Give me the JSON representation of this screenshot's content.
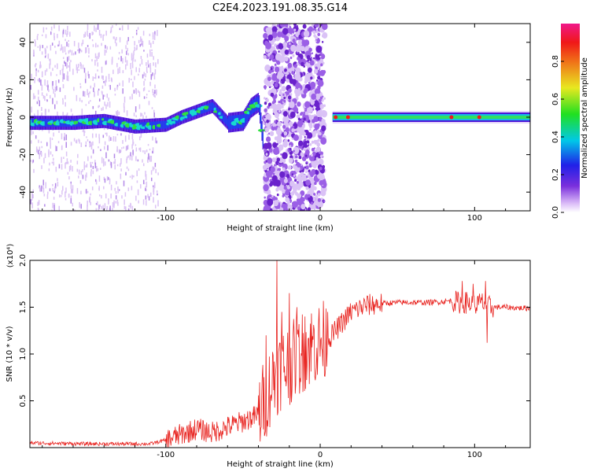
{
  "title": "C2E4.2023.191.08.35.G14",
  "colors": {
    "snr_line": "#e8231f",
    "frame": "#000000"
  },
  "chart_data": [
    {
      "type": "heatmap",
      "xlabel": "Height of straight line (km)",
      "ylabel": "Frequency (Hz)",
      "xlim": [
        -188,
        136
      ],
      "ylim": [
        -50,
        50
      ],
      "xticks": [
        -100,
        0,
        100
      ],
      "yticks": [
        -40,
        -20,
        0,
        20,
        40
      ],
      "ytick_labels": [
        "-40",
        "-20",
        "0",
        "20",
        "40"
      ],
      "grid": false,
      "colorbar": {
        "label": "Normalized spectral amplitude",
        "range": [
          0,
          1
        ],
        "ticks": [
          0.0,
          0.2,
          0.4,
          0.6,
          0.8
        ],
        "tick_labels": [
          "0.0",
          "0.2",
          "0.4",
          "0.6",
          "0.8"
        ],
        "colormap": "rainbow (white-violet-blue-cyan-green-yellow-red-magenta)"
      },
      "ridge_frequency": {
        "x": [
          -188,
          -160,
          -140,
          -120,
          -100,
          -90,
          -80,
          -70,
          -60,
          -50,
          -45,
          -40,
          -37,
          0,
          5,
          10,
          20,
          50,
          100,
          136
        ],
        "y": [
          -3,
          -3,
          -2,
          -5,
          -4,
          0,
          3,
          6,
          -3,
          -2,
          5,
          8,
          -15,
          0,
          0,
          0,
          0,
          0,
          0,
          0
        ]
      }
    },
    {
      "type": "line",
      "xlabel": "Height of straight line (km)",
      "ylabel": "SNR (10 * v/v)",
      "yscale_label": "(x10⁴)",
      "xlim": [
        -188,
        136
      ],
      "ylim": [
        0,
        2.0
      ],
      "xticks": [
        -100,
        0,
        100
      ],
      "yticks": [
        0.5,
        1.0,
        1.5,
        2.0
      ],
      "ytick_labels": [
        "0.5",
        "1.0",
        "1.5",
        "2.0"
      ],
      "grid": false,
      "series": [
        {
          "x": [
            -188,
            -150,
            -110,
            -100,
            -90,
            -80,
            -70,
            -60,
            -50,
            -40,
            -35,
            -30,
            -25,
            -20,
            -15,
            -10,
            -5,
            0,
            5,
            10,
            20,
            30,
            40,
            50,
            60,
            70,
            80,
            85,
            90,
            95,
            100,
            105,
            110,
            120,
            130,
            136
          ],
          "y": [
            0.05,
            0.04,
            0.04,
            0.08,
            0.14,
            0.2,
            0.16,
            0.22,
            0.28,
            0.35,
            0.55,
            0.75,
            0.85,
            0.9,
            0.95,
            1.05,
            1.1,
            1.12,
            1.15,
            1.25,
            1.45,
            1.52,
            1.54,
            1.55,
            1.55,
            1.55,
            1.56,
            1.57,
            1.55,
            1.55,
            1.52,
            1.55,
            1.5,
            1.5,
            1.49,
            1.49
          ],
          "spikes": [
            {
              "x": -35,
              "y": 1.2
            },
            {
              "x": -28,
              "y": 2.0
            },
            {
              "x": -25,
              "y": 1.45
            },
            {
              "x": -20,
              "y": 1.65
            },
            {
              "x": -15,
              "y": 1.5
            },
            {
              "x": -10,
              "y": 1.4
            },
            {
              "x": 5,
              "y": 1.45
            },
            {
              "x": 92,
              "y": 1.78
            },
            {
              "x": 99,
              "y": 1.75
            },
            {
              "x": 107,
              "y": 1.78
            },
            {
              "x": 108,
              "y": 1.12
            }
          ]
        }
      ]
    }
  ]
}
